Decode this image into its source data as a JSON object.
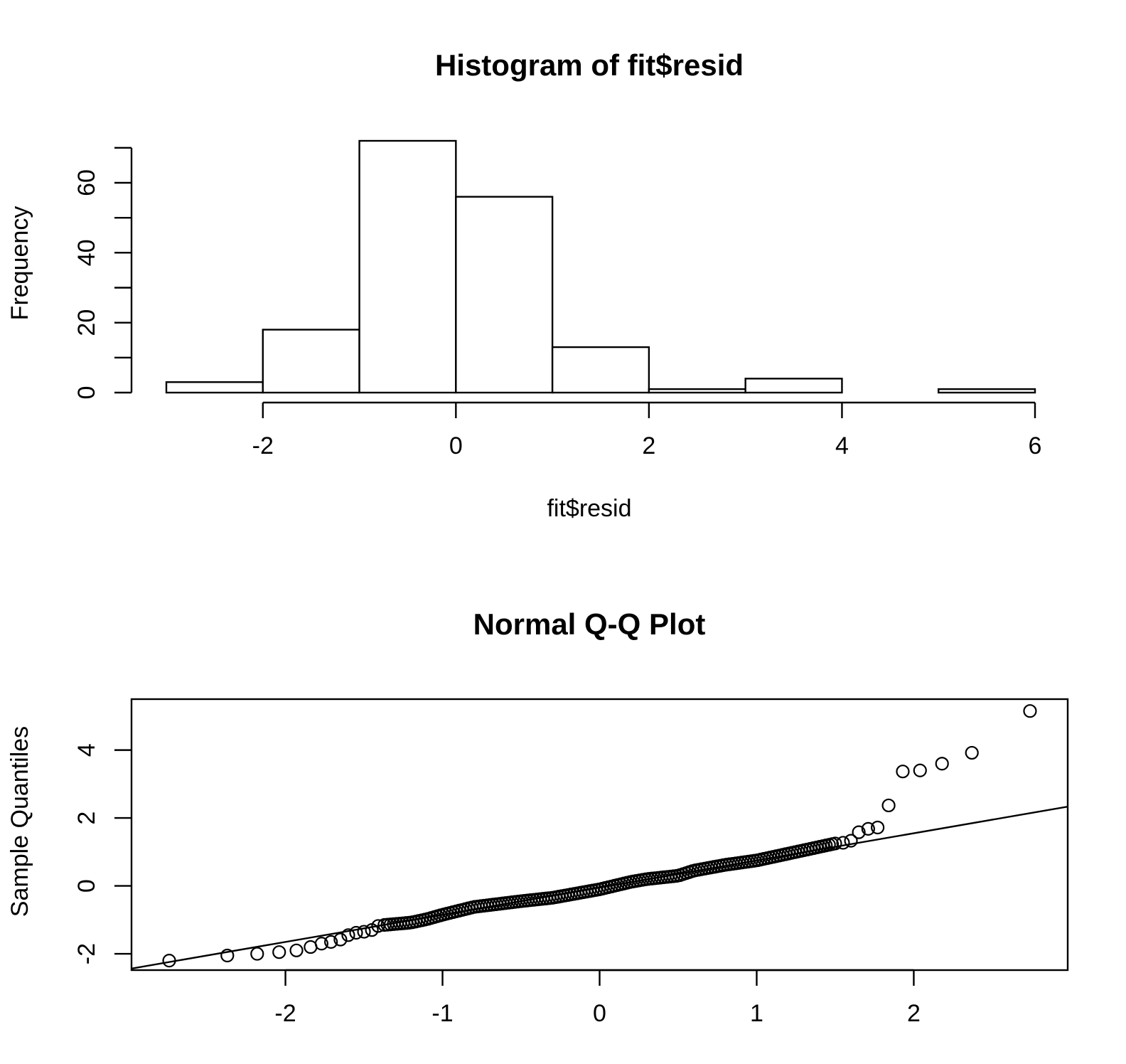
{
  "chart_data": [
    {
      "type": "histogram",
      "title": "Histogram of fit$resid",
      "xlabel": "fit$resid",
      "ylabel": "Frequency",
      "bins": [
        {
          "from": -3,
          "to": -2,
          "count": 3
        },
        {
          "from": -2,
          "to": -1,
          "count": 18
        },
        {
          "from": -1,
          "to": 0,
          "count": 72
        },
        {
          "from": 0,
          "to": 1,
          "count": 56
        },
        {
          "from": 1,
          "to": 2,
          "count": 13
        },
        {
          "from": 2,
          "to": 3,
          "count": 1
        },
        {
          "from": 3,
          "to": 4,
          "count": 4
        },
        {
          "from": 4,
          "to": 5,
          "count": 0
        },
        {
          "from": 5,
          "to": 6,
          "count": 1
        }
      ],
      "xticks": [
        -2,
        0,
        2,
        4,
        6
      ],
      "xtick_labels": [
        "-2",
        "0",
        "2",
        "4",
        "6"
      ],
      "yticks": [
        0,
        10,
        20,
        30,
        40,
        50,
        60,
        70
      ],
      "ytick_labels": [
        "0",
        "",
        "20",
        "",
        "40",
        "",
        "60",
        ""
      ],
      "xlim": [
        -3,
        6
      ],
      "ylim": [
        0,
        72
      ],
      "grid": false
    },
    {
      "type": "scatter",
      "title": "Normal Q-Q Plot",
      "xlabel": "",
      "ylabel": "Sample Quantiles",
      "xticks": [
        -2,
        -1,
        0,
        1,
        2
      ],
      "xtick_labels": [
        "-2",
        "-1",
        "0",
        "1",
        "2"
      ],
      "yticks": [
        -2,
        0,
        2,
        4
      ],
      "ytick_labels": [
        "-2",
        "0",
        "2",
        "4"
      ],
      "xlim": [
        -2.98,
        2.98
      ],
      "ylim": [
        -2.48,
        5.5
      ],
      "grid": false,
      "reference_line": {
        "intercept": -0.05,
        "slope": 0.8
      },
      "outliers": [
        {
          "x": -2.74,
          "y": -2.2
        },
        {
          "x": -2.37,
          "y": -2.05
        },
        {
          "x": -2.18,
          "y": -2.0
        },
        {
          "x": -2.04,
          "y": -1.95
        },
        {
          "x": -1.93,
          "y": -1.9
        },
        {
          "x": -1.84,
          "y": -1.8
        },
        {
          "x": -1.77,
          "y": -1.7
        },
        {
          "x": -1.71,
          "y": -1.65
        },
        {
          "x": -1.65,
          "y": -1.58
        },
        {
          "x": -1.6,
          "y": -1.45
        },
        {
          "x": -1.55,
          "y": -1.38
        },
        {
          "x": -1.5,
          "y": -1.35
        },
        {
          "x": -1.45,
          "y": -1.3
        },
        {
          "x": -1.41,
          "y": -1.18
        },
        {
          "x": -1.37,
          "y": -1.15
        },
        {
          "x": 1.5,
          "y": 1.25
        },
        {
          "x": 1.55,
          "y": 1.27
        },
        {
          "x": 1.6,
          "y": 1.33
        },
        {
          "x": 1.65,
          "y": 1.58
        },
        {
          "x": 1.71,
          "y": 1.68
        },
        {
          "x": 1.77,
          "y": 1.72
        },
        {
          "x": 1.84,
          "y": 2.37
        },
        {
          "x": 1.93,
          "y": 3.37
        },
        {
          "x": 2.04,
          "y": 3.4
        },
        {
          "x": 2.18,
          "y": 3.6
        },
        {
          "x": 2.37,
          "y": 3.92
        },
        {
          "x": 2.74,
          "y": 5.15
        }
      ],
      "body_anchors": [
        [
          -1.37,
          -1.15
        ],
        [
          -1.2,
          -1.08
        ],
        [
          -1.1,
          -0.98
        ],
        [
          -1.0,
          -0.85
        ],
        [
          -0.8,
          -0.62
        ],
        [
          -0.5,
          -0.45
        ],
        [
          -0.3,
          -0.35
        ],
        [
          0.0,
          -0.1
        ],
        [
          0.2,
          0.12
        ],
        [
          0.3,
          0.2
        ],
        [
          0.5,
          0.3
        ],
        [
          0.6,
          0.45
        ],
        [
          0.8,
          0.62
        ],
        [
          1.0,
          0.75
        ],
        [
          1.2,
          0.95
        ],
        [
          1.3,
          1.05
        ],
        [
          1.5,
          1.25
        ]
      ],
      "body_point_count": 146
    }
  ]
}
